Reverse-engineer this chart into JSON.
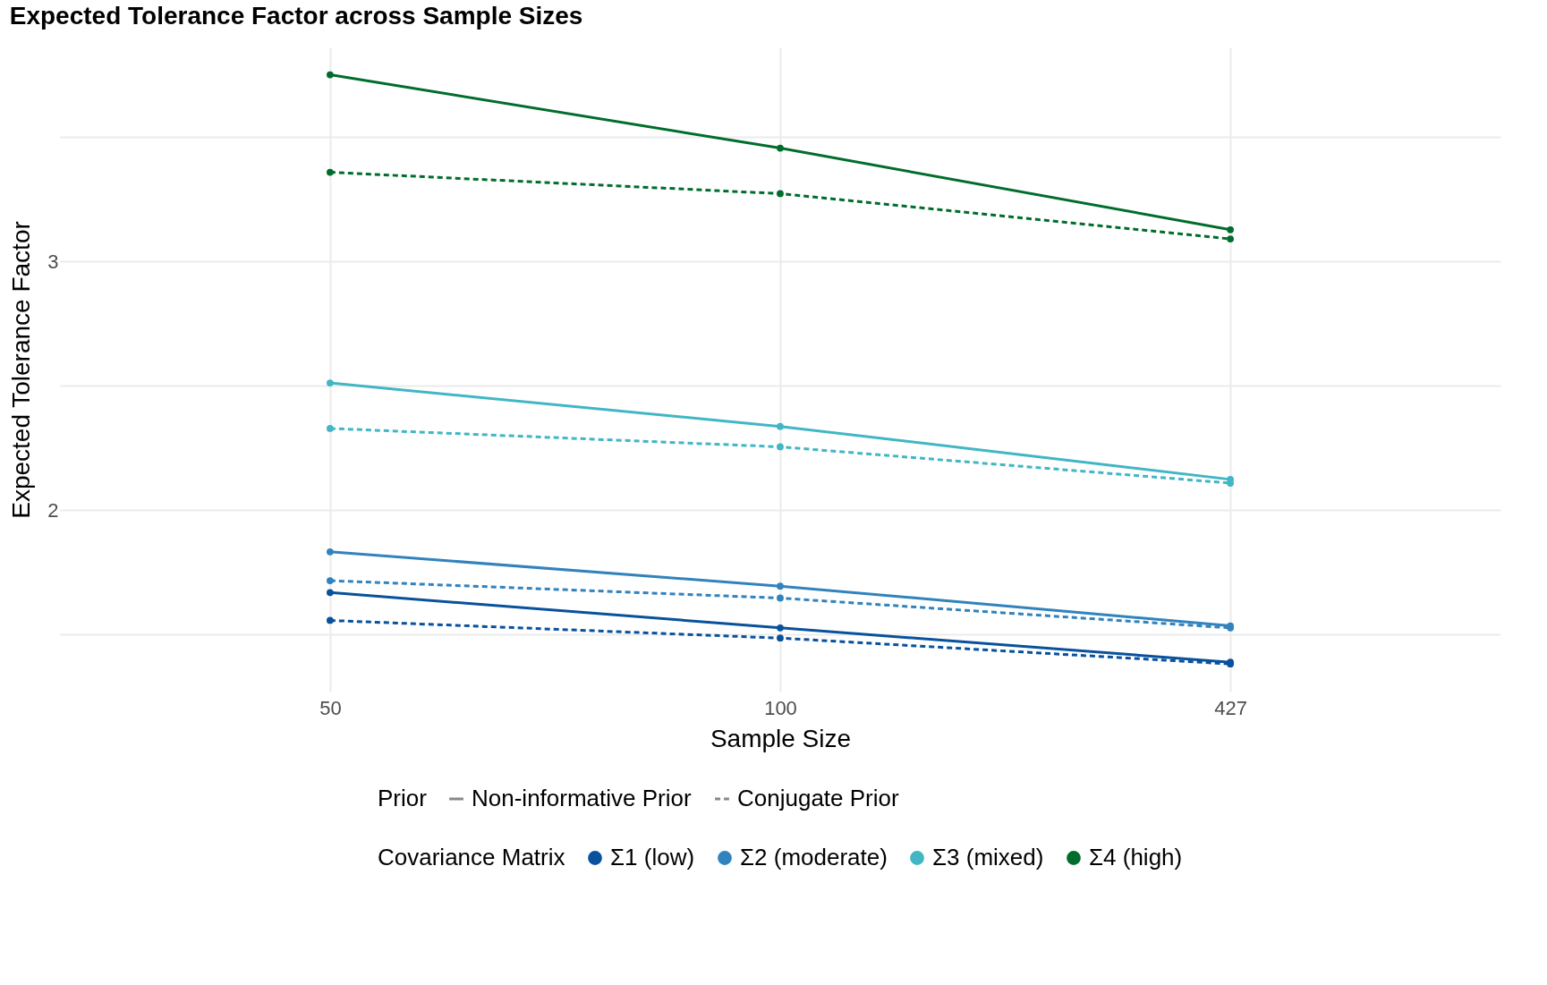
{
  "chart_data": {
    "type": "line",
    "title": "Expected Tolerance Factor across Sample Sizes",
    "xlabel": "Sample Size",
    "ylabel": "Expected Tolerance Factor",
    "legend_title": "Covariance Matrix",
    "categories": [
      "50",
      "100",
      "427"
    ],
    "series": [
      {
        "name": "Σ1 (low)",
        "color": "#08519c",
        "line_style": "solid",
        "values": [
          1.668,
          1.526,
          1.388
        ]
      },
      {
        "name": "Σ2 (moderate)",
        "color": "#3182bd",
        "line_style": "solid",
        "values": [
          1.832,
          1.694,
          1.534
        ]
      },
      {
        "name": "Σ3 (mixed)",
        "color": "#41b6c4",
        "line_style": "solid",
        "values": [
          2.511,
          2.336,
          2.123
        ]
      },
      {
        "name": "Σ4 (high)",
        "color": "#006d2c",
        "line_style": "solid",
        "values": [
          3.75,
          3.455,
          3.127
        ]
      },
      {
        "color": "#08519c",
        "line_style": "dashed",
        "values": [
          1.556,
          1.485,
          1.381
        ]
      },
      {
        "color": "#3182bd",
        "line_style": "dashed",
        "values": [
          1.716,
          1.646,
          1.526
        ]
      },
      {
        "color": "#41b6c4",
        "line_style": "dashed",
        "values": [
          2.328,
          2.254,
          2.108
        ]
      },
      {
        "color": "#006d2c",
        "line_style": "dashed",
        "values": [
          3.358,
          3.272,
          3.09
        ]
      }
    ],
    "annotations": [
      "Prior",
      "Non-informative Prior",
      "Conjugate Prior"
    ],
    "ylim": [
      1.27,
      3.86
    ],
    "yticks": [
      {
        "value": 1.5,
        "label": null
      },
      2,
      {
        "value": 2.5,
        "label": null
      },
      3,
      {
        "value": 3.5,
        "label": null
      }
    ],
    "grid": true,
    "legend": "bottom",
    "marker": "circle"
  }
}
